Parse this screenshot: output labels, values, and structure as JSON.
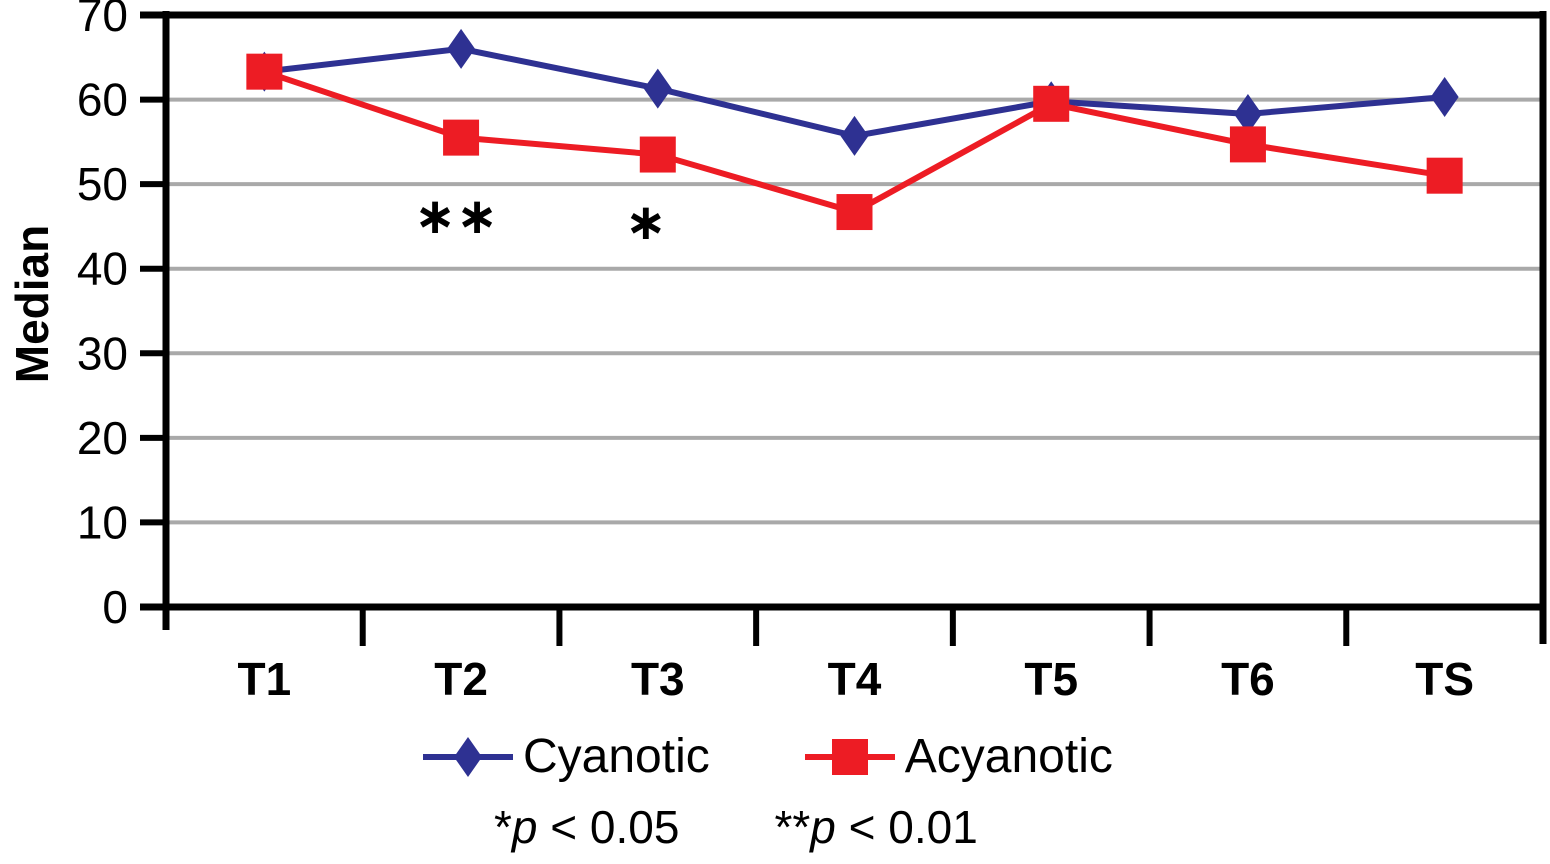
{
  "chart_data": {
    "type": "line",
    "ylabel": "Median",
    "xlabel": "",
    "ylim": [
      0,
      70
    ],
    "ytick_step": 10,
    "grid": "horizontal",
    "gridline_color": "#a9a9a9",
    "axis_color": "#000000",
    "legend_position": "bottom",
    "categories": [
      "T1",
      "T2",
      "T3",
      "T4",
      "T5",
      "T6",
      "TS"
    ],
    "series": [
      {
        "name": "Cyanotic",
        "marker": "diamond",
        "color": "#2e3192",
        "values": [
          63.3,
          66,
          61.3,
          55.7,
          59.8,
          58.3,
          60.3
        ]
      },
      {
        "name": "Acyanotic",
        "marker": "square",
        "color": "#ed1c24",
        "values": [
          63.3,
          55.5,
          53.5,
          46.7,
          59.5,
          54.7,
          51
        ]
      }
    ],
    "annotations": [
      {
        "category": "T2",
        "text": "∗∗",
        "value": 44.2,
        "dx": -5
      },
      {
        "category": "T3",
        "text": "∗",
        "value": 43.5,
        "dx": -12
      }
    ]
  },
  "legend": {
    "items": [
      {
        "label": "Cyanotic",
        "color": "#2e3192",
        "marker": "diamond"
      },
      {
        "label": "Acyanotic",
        "color": "#ed1c24",
        "marker": "square"
      }
    ]
  },
  "notes": [
    {
      "stars": "*",
      "variable": "p",
      "comparison": " < 0.05"
    },
    {
      "stars": "**",
      "variable": "p",
      "comparison": " < 0.01"
    }
  ]
}
